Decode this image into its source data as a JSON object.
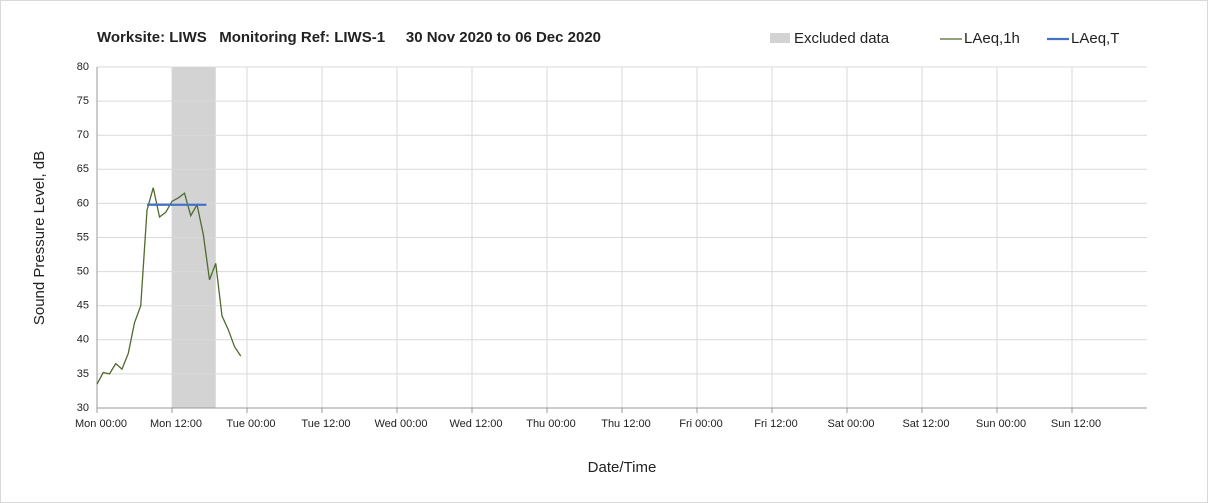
{
  "chart_data": {
    "type": "line",
    "title": "Worksite: LIWS   Monitoring Ref: LIWS-1     30 Nov 2020 to 06 Dec 2020",
    "x_label": "Date/Time",
    "y_label": "Sound Pressure Level, dB",
    "xlim": [
      0,
      168
    ],
    "xticks": [
      {
        "value": 0,
        "label": "Mon 00:00"
      },
      {
        "value": 12,
        "label": "Mon 12:00"
      },
      {
        "value": 24,
        "label": "Tue 00:00"
      },
      {
        "value": 36,
        "label": "Tue 12:00"
      },
      {
        "value": 48,
        "label": "Wed 00:00"
      },
      {
        "value": 60,
        "label": "Wed 12:00"
      },
      {
        "value": 72,
        "label": "Thu 00:00"
      },
      {
        "value": 84,
        "label": "Thu 12:00"
      },
      {
        "value": 96,
        "label": "Fri 00:00"
      },
      {
        "value": 108,
        "label": "Fri 12:00"
      },
      {
        "value": 120,
        "label": "Sat 00:00"
      },
      {
        "value": 132,
        "label": "Sat 12:00"
      },
      {
        "value": 144,
        "label": "Sun 00:00"
      },
      {
        "value": 156,
        "label": "Sun 12:00"
      }
    ],
    "ylim": [
      30,
      80
    ],
    "yticks": [
      30,
      35,
      40,
      45,
      50,
      55,
      60,
      65,
      70,
      75,
      80
    ],
    "grid": true,
    "shaded_regions": [
      {
        "name": "Excluded data",
        "color": "#d3d3d3",
        "x": [
          12,
          19
        ]
      }
    ],
    "series": [
      {
        "name": "LAeq,1h",
        "color": "#4f6b2e",
        "x": [
          0,
          1,
          2,
          3,
          4,
          5,
          6,
          7,
          8,
          9,
          10,
          11,
          12,
          13,
          14,
          15,
          16,
          17,
          18,
          19,
          20,
          21,
          22,
          23
        ],
        "values": [
          33.5,
          35.2,
          35,
          36.5,
          35.7,
          38,
          42.5,
          45,
          59,
          62.3,
          58,
          58.7,
          60.3,
          60.8,
          61.5,
          58.2,
          59.8,
          55.5,
          48.8,
          51.2,
          43.5,
          41.5,
          39,
          37.6
        ]
      },
      {
        "name": "LAeq,T",
        "color": "#4472c4",
        "x": [
          8,
          17.5
        ],
        "values": [
          59.8,
          59.8
        ]
      }
    ]
  }
}
